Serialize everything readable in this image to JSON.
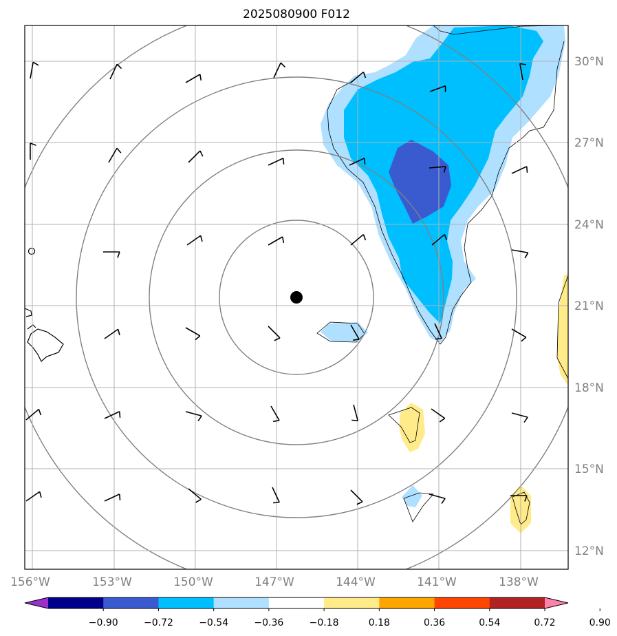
{
  "title": "2025080900 F012",
  "map": {
    "lon_labels": [
      "156°W",
      "153°W",
      "150°W",
      "147°W",
      "144°W",
      "141°W",
      "138°W"
    ],
    "lat_labels": [
      "30°N",
      "27°N",
      "24°N",
      "21°N",
      "18°N",
      "15°N",
      "12°N"
    ],
    "gridlines": true,
    "storm_center_marker": "black-dot"
  },
  "colorbar": {
    "tick_labels": [
      "−0.90",
      "−0.72",
      "−0.54",
      "−0.36",
      "−0.18",
      "0.18",
      "0.36",
      "0.54",
      "0.72",
      "0.90"
    ],
    "colors": [
      "#9932CC",
      "#00008B",
      "#3A5BD0",
      "#00BFFF",
      "#B0E0FF",
      "#FFFFFF",
      "#FFEB8A",
      "#FFA500",
      "#FF4500",
      "#B22222",
      "#FF80AA"
    ],
    "extend": "both"
  }
}
